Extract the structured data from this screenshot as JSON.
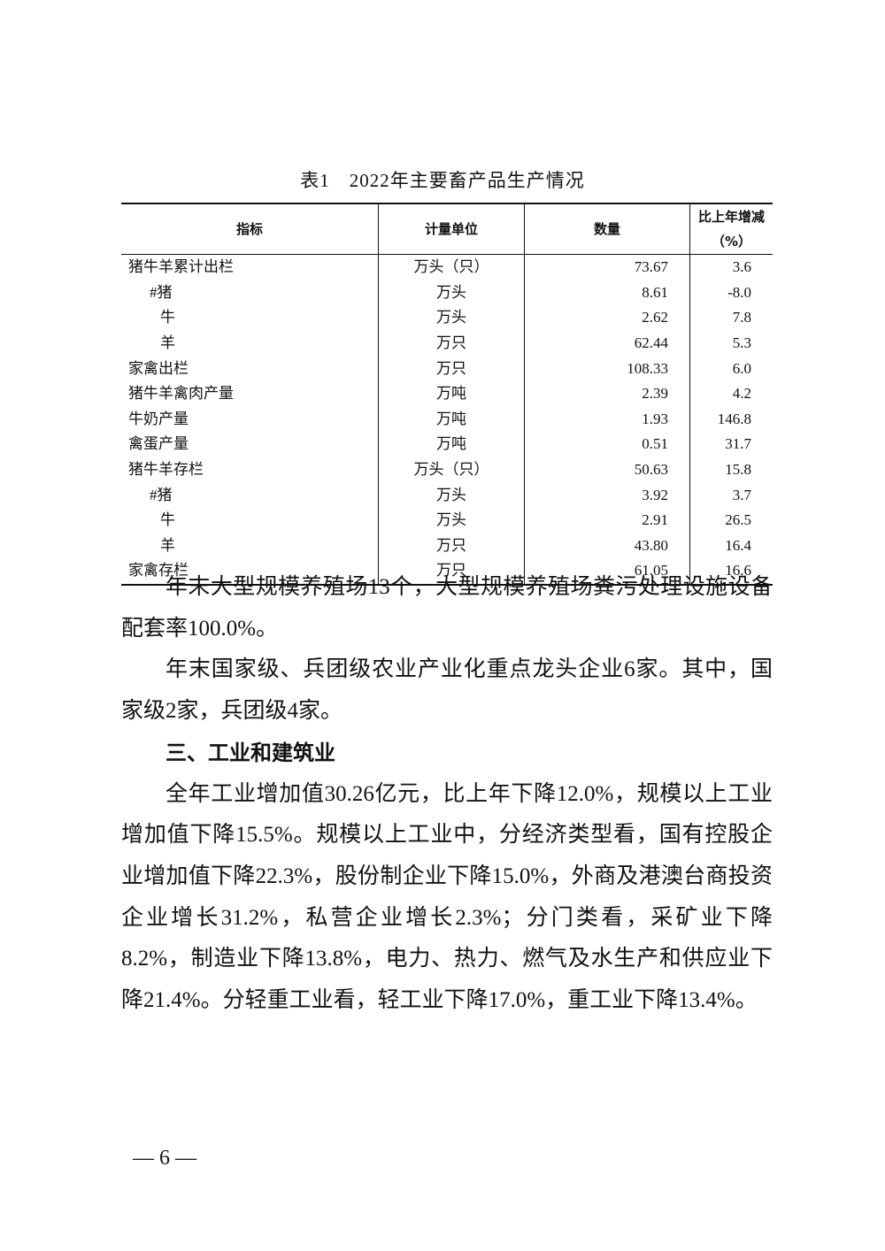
{
  "table": {
    "title": "表1　2022年主要畜产品生产情况",
    "headers": [
      "指标",
      "计量单位",
      "数量",
      "比上年增减（%）"
    ],
    "rows": [
      {
        "name": "猪牛羊累计出栏",
        "unit": "万头（只）",
        "value": "73.67",
        "change": "3.6",
        "indent": 0
      },
      {
        "name": "#猪",
        "unit": "万头",
        "value": "8.61",
        "change": "-8.0",
        "indent": 1
      },
      {
        "name": "牛",
        "unit": "万头",
        "value": "2.62",
        "change": "7.8",
        "indent": 2
      },
      {
        "name": "羊",
        "unit": "万只",
        "value": "62.44",
        "change": "5.3",
        "indent": 2
      },
      {
        "name": "家禽出栏",
        "unit": "万只",
        "value": "108.33",
        "change": "6.0",
        "indent": 0
      },
      {
        "name": "猪牛羊禽肉产量",
        "unit": "万吨",
        "value": "2.39",
        "change": "4.2",
        "indent": 0
      },
      {
        "name": "牛奶产量",
        "unit": "万吨",
        "value": "1.93",
        "change": "146.8",
        "indent": 0
      },
      {
        "name": "禽蛋产量",
        "unit": "万吨",
        "value": "0.51",
        "change": "31.7",
        "indent": 0
      },
      {
        "name": "猪牛羊存栏",
        "unit": "万头（只）",
        "value": "50.63",
        "change": "15.8",
        "indent": 0
      },
      {
        "name": "#猪",
        "unit": "万头",
        "value": "3.92",
        "change": "3.7",
        "indent": 1
      },
      {
        "name": "牛",
        "unit": "万头",
        "value": "2.91",
        "change": "26.5",
        "indent": 2
      },
      {
        "name": "羊",
        "unit": "万只",
        "value": "43.80",
        "change": "16.4",
        "indent": 2
      },
      {
        "name": "家禽存栏",
        "unit": "万只",
        "value": "61.05",
        "change": "16.6",
        "indent": 0
      }
    ]
  },
  "paragraphs": [
    "年末大型规模养殖场13个，大型规模养殖场粪污处理设施设备配套率100.0%。",
    "年末国家级、兵团级农业产业化重点龙头企业6家。其中，国家级2家，兵团级4家。",
    "三、工业和建筑业",
    "全年工业增加值30.26亿元，比上年下降12.0%，规模以上工业增加值下降15.5%。规模以上工业中，分经济类型看，国有控股企业增加值下降22.3%，股份制企业下降15.0%，外商及港澳台商投资企业增长31.2%，私营企业增长2.3%；分门类看，采矿业下降8.2%，制造业下降13.8%，电力、热力、燃气及水生产和供应业下降21.4%。分轻重工业看，轻工业下降17.0%，重工业下降13.4%。"
  ],
  "page_number": "— 6 —"
}
